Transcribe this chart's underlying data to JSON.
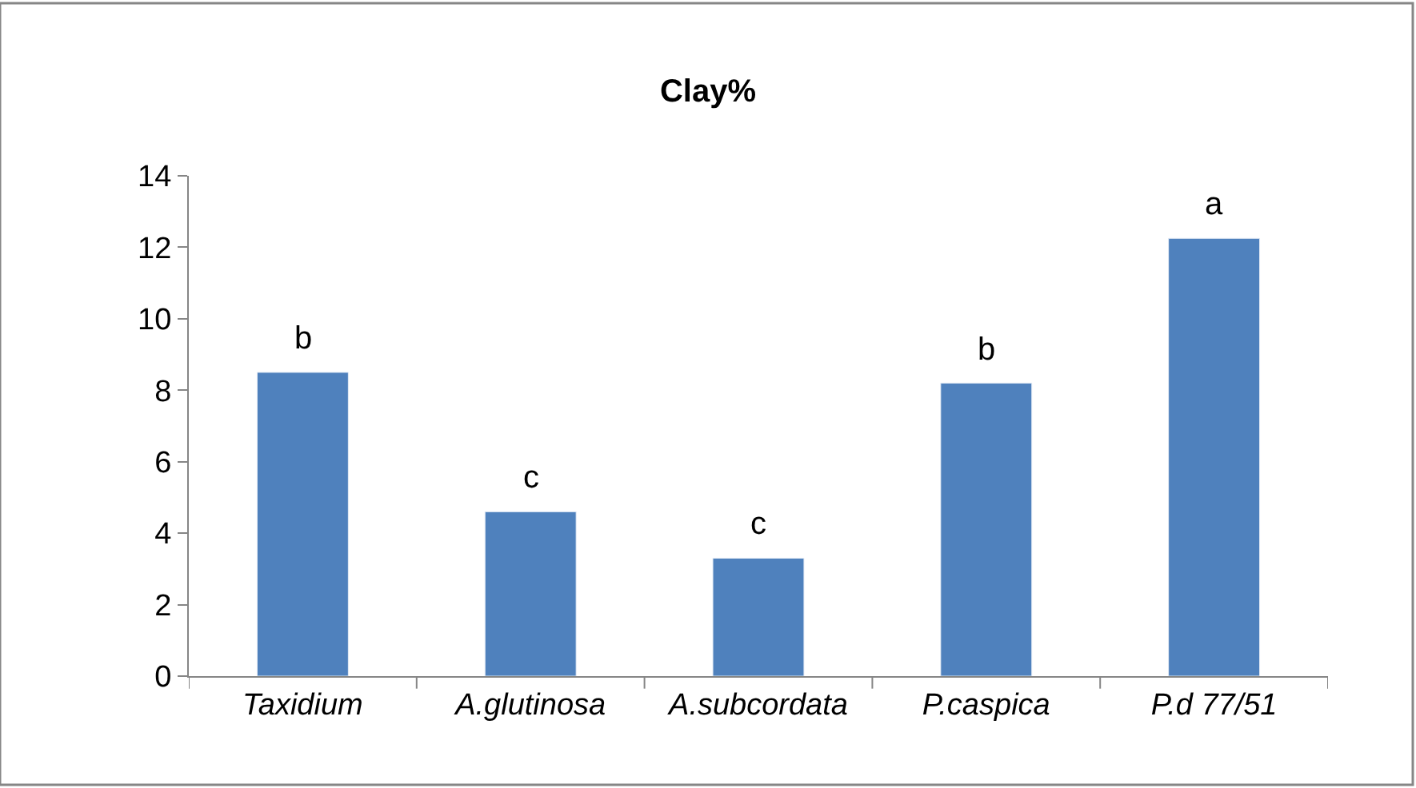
{
  "chart_data": {
    "type": "bar",
    "title": "Clay%",
    "categories": [
      "Taxidium",
      "A.glutinosa",
      "A.subcordata",
      "P.caspica",
      "P.d 77/51"
    ],
    "values": [
      8.5,
      4.6,
      3.3,
      8.2,
      12.25
    ],
    "color": "#4f81bd",
    "ylim": [
      0,
      14
    ],
    "yticks": [
      0,
      2,
      4,
      6,
      8,
      10,
      12,
      14
    ],
    "legend": false,
    "annotations": [
      {
        "text": "b",
        "x": "Taxidium",
        "y": 8.5
      },
      {
        "text": "c",
        "x": "A.glutinosa",
        "y": 4.6
      },
      {
        "text": "c",
        "x": "A.subcordata",
        "y": 3.3
      },
      {
        "text": "b",
        "x": "P.caspica",
        "y": 8.2
      },
      {
        "text": "a",
        "x": "P.d 77/51",
        "y": 12.25
      }
    ]
  }
}
